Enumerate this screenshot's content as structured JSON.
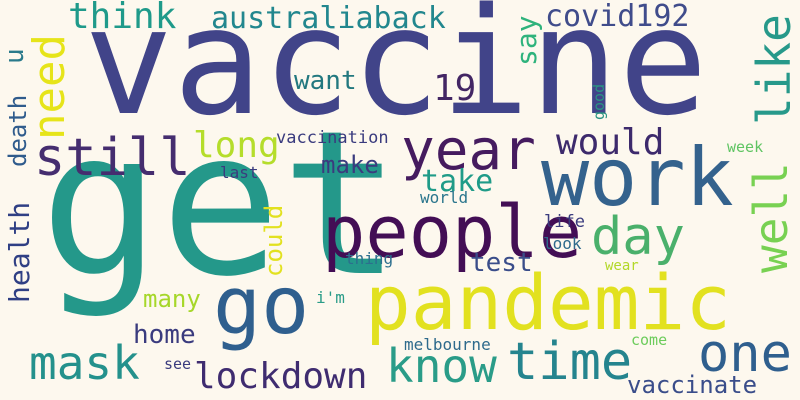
{
  "words": {
    "get": {
      "text": "get",
      "color": "#24988a"
    },
    "vaccine": {
      "text": "vaccine",
      "color": "#414489"
    },
    "pandemic": {
      "text": "pandemic",
      "color": "#e2e11f"
    },
    "work": {
      "text": "work",
      "color": "#34628d"
    },
    "people": {
      "text": "people",
      "color": "#430e55"
    },
    "go": {
      "text": "go",
      "color": "#2f5f8e"
    },
    "year": {
      "text": "year",
      "color": "#451b5f"
    },
    "still": {
      "text": "still",
      "color": "#452d6f"
    },
    "day": {
      "text": "day",
      "color": "#4ab06b"
    },
    "well": {
      "text": "well",
      "color": "#78d152"
    },
    "like": {
      "text": "like",
      "color": "#27998a"
    },
    "one": {
      "text": "one",
      "color": "#2f5f8e"
    },
    "time": {
      "text": "time",
      "color": "#25848e"
    },
    "know": {
      "text": "know",
      "color": "#2a9c88"
    },
    "mask": {
      "text": "mask",
      "color": "#24918c"
    },
    "need": {
      "text": "need",
      "color": "#e6e419"
    },
    "lockdown": {
      "text": "lockdown",
      "color": "#3f2c70"
    },
    "think": {
      "text": "think",
      "color": "#1f9a8a"
    },
    "australiaback": {
      "text": "australiaback",
      "color": "#22878e"
    },
    "covid192": {
      "text": "covid192",
      "color": "#404c8b"
    },
    "would": {
      "text": "would",
      "color": "#3d2a6c"
    },
    "long": {
      "text": "long",
      "color": "#b5dd2b"
    },
    "take": {
      "text": "take",
      "color": "#1f9b88"
    },
    "vaccinate": {
      "text": "vaccinate",
      "color": "#3a4d8a"
    },
    "home": {
      "text": "home",
      "color": "#3a3b7e"
    },
    "test": {
      "text": "test",
      "color": "#3a4d8a"
    },
    "health": {
      "text": "health",
      "color": "#2f3f84"
    },
    "death": {
      "text": "death",
      "color": "#2f5b8c"
    },
    "say": {
      "text": "say",
      "color": "#2fb37c"
    },
    "want": {
      "text": "want",
      "color": "#22787f"
    },
    "n19": {
      "text": "19",
      "color": "#432664"
    },
    "could": {
      "text": "could",
      "color": "#e2e11f"
    },
    "make": {
      "text": "make",
      "color": "#3a3b7e"
    },
    "many": {
      "text": "many",
      "color": "#a6d72a"
    },
    "vaccination": {
      "text": "vaccination",
      "color": "#3a3b7e"
    },
    "u": {
      "text": "u",
      "color": "#2a7a8b"
    },
    "good": {
      "text": "good",
      "color": "#2a9483"
    },
    "week": {
      "text": "week",
      "color": "#5fc462"
    },
    "last": {
      "text": "last",
      "color": "#3a3b7e"
    },
    "world": {
      "text": "world",
      "color": "#2b768d"
    },
    "life": {
      "text": "life",
      "color": "#3a3b7e"
    },
    "look": {
      "text": "look",
      "color": "#2e6a8c"
    },
    "thing": {
      "text": "thing",
      "color": "#2c6f8e"
    },
    "wear": {
      "text": "wear",
      "color": "#b3d829"
    },
    "im": {
      "text": "i'm",
      "color": "#2a9c88"
    },
    "melbourne": {
      "text": "melbourne",
      "color": "#2e6a8c"
    },
    "come": {
      "text": "come",
      "color": "#6ccc5b"
    },
    "see": {
      "text": "see",
      "color": "#3a3b7e"
    }
  }
}
